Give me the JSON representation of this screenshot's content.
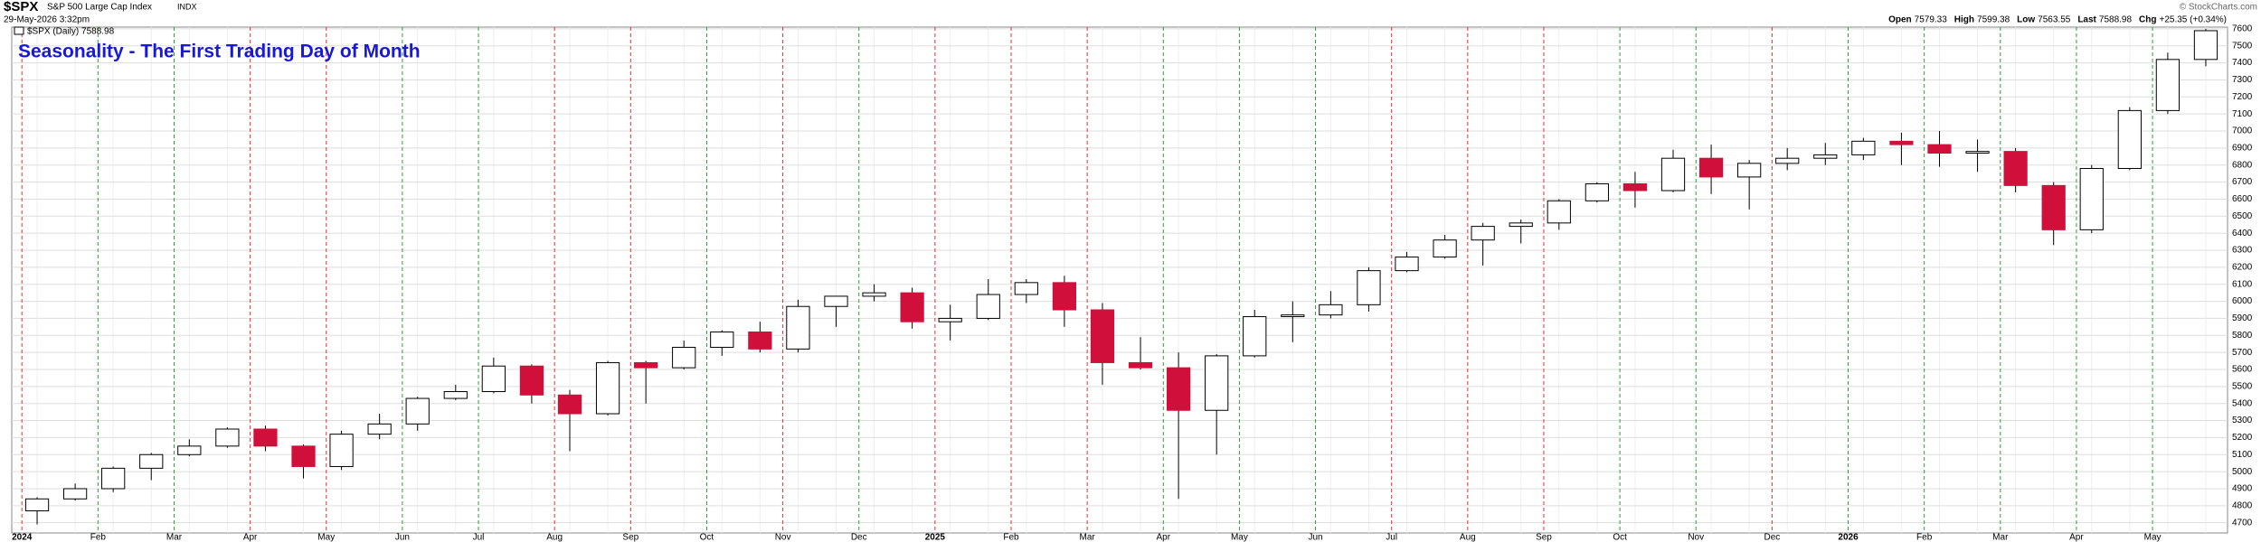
{
  "header": {
    "symbol": "$SPX",
    "name": "S&P 500 Large Cap Index",
    "exchange": "INDX",
    "timestamp": "29-May-2026 3:32pm",
    "legend": "$SPX (Daily) 7588.98",
    "copyright": "© StockCharts.com",
    "quote": [
      {
        "label": "Open",
        "value": 7579.33
      },
      {
        "label": "High",
        "value": 7599.38
      },
      {
        "label": "Low",
        "value": 7563.55
      },
      {
        "label": "Last",
        "value": 7588.98
      },
      {
        "label": "Chg",
        "value": "+25.35 (+0.34%)"
      }
    ]
  },
  "chart_data": {
    "type": "candlestick",
    "title": "Seasonality - The First Trading Day of Month",
    "categories": [
      "2024",
      null,
      "Feb",
      null,
      "Mar",
      null,
      "Apr",
      null,
      "May",
      null,
      "Jun",
      null,
      "Jul",
      null,
      "Aug",
      null,
      "Sep",
      null,
      "Oct",
      null,
      "Nov",
      null,
      "Dec",
      null,
      "2025",
      null,
      "Feb",
      null,
      "Mar",
      null,
      "Apr",
      null,
      "May",
      null,
      "Jun",
      null,
      "Jul",
      null,
      "Aug",
      null,
      "Sep",
      null,
      "Oct",
      null,
      "Nov",
      null,
      "Dec",
      null,
      "2026",
      null,
      "Feb",
      null,
      "Mar",
      null,
      "Apr",
      null,
      "May",
      null
    ],
    "open": [
      4770,
      4840,
      4900,
      5020,
      5100,
      5150,
      5250,
      5150,
      5030,
      5220,
      5280,
      5430,
      5470,
      5620,
      5450,
      5340,
      5640,
      5610,
      5730,
      5820,
      5720,
      5970,
      6030,
      6050,
      5880,
      5900,
      6040,
      6110,
      5950,
      5640,
      5610,
      5360,
      5680,
      5910,
      5920,
      5980,
      6180,
      6260,
      6360,
      6440,
      6460,
      6590,
      6690,
      6650,
      6840,
      6730,
      6810,
      6840,
      6860,
      6940,
      6920,
      6870,
      6880,
      6680,
      6420,
      6780,
      7120,
      7420
    ],
    "high": [
      4850,
      4930,
      5030,
      5110,
      5190,
      5260,
      5270,
      5160,
      5240,
      5340,
      5440,
      5510,
      5670,
      5630,
      5480,
      5650,
      5650,
      5770,
      5830,
      5880,
      6010,
      6030,
      6100,
      6080,
      5980,
      6130,
      6130,
      6150,
      5990,
      5790,
      5700,
      5690,
      5950,
      6000,
      6060,
      6200,
      6290,
      6390,
      6460,
      6480,
      6600,
      6700,
      6760,
      6890,
      6920,
      6830,
      6900,
      6930,
      6960,
      6990,
      7000,
      6950,
      6900,
      6700,
      6800,
      7140,
      7460,
      7600
    ],
    "low": [
      4690,
      4830,
      4880,
      4950,
      5090,
      5140,
      5120,
      4960,
      5010,
      5190,
      5240,
      5420,
      5460,
      5400,
      5120,
      5330,
      5400,
      5600,
      5680,
      5700,
      5700,
      5850,
      6000,
      5840,
      5770,
      5890,
      5990,
      5850,
      5510,
      5600,
      4840,
      5100,
      5670,
      5760,
      5900,
      5940,
      6170,
      6250,
      6210,
      6340,
      6420,
      6580,
      6550,
      6640,
      6630,
      6540,
      6770,
      6800,
      6830,
      6800,
      6790,
      6760,
      6640,
      6330,
      6400,
      6770,
      7100,
      7380
    ],
    "close": [
      4840,
      4900,
      5020,
      5100,
      5150,
      5250,
      5150,
      5030,
      5220,
      5280,
      5430,
      5470,
      5620,
      5450,
      5340,
      5640,
      5610,
      5730,
      5820,
      5720,
      5970,
      6030,
      6050,
      5880,
      5900,
      6040,
      6110,
      5950,
      5640,
      5610,
      5360,
      5680,
      5910,
      5920,
      5980,
      6180,
      6260,
      6360,
      6440,
      6460,
      6590,
      6690,
      6650,
      6840,
      6730,
      6810,
      6840,
      6860,
      6940,
      6920,
      6870,
      6880,
      6680,
      6420,
      6780,
      7120,
      7420,
      7588.98
    ],
    "up_color": "#ffffff",
    "down_color": "#d0103a",
    "wick_color": "#000000",
    "month_line_colors": [
      "#e53030",
      "#2e9e2e",
      "#2e9e2e",
      "#e53030",
      "#e53030",
      "#2e9e2e",
      "#2e9e2e",
      "#e53030",
      "#e53030",
      "#2e9e2e",
      "#e53030",
      "#2e9e2e",
      "#e53030",
      "#e53030",
      "#e53030",
      "#2e9e2e",
      "#2e9e2e",
      "#2e9e2e",
      "#e53030",
      "#e53030",
      "#e53030",
      "#2e9e2e",
      "#2e9e2e",
      "#e53030",
      "#2e9e2e",
      "#2e9e2e",
      "#2e9e2e",
      "#2e9e2e",
      "#2e9e2e"
    ],
    "ylim": [
      4640,
      7610
    ],
    "yticks": [
      4700,
      4800,
      4900,
      5000,
      5100,
      5200,
      5300,
      5400,
      5500,
      5600,
      5700,
      5800,
      5900,
      6000,
      6100,
      6200,
      6300,
      6400,
      6500,
      6600,
      6700,
      6800,
      6900,
      7000,
      7100,
      7200,
      7300,
      7400,
      7500,
      7600
    ],
    "grid": true
  }
}
